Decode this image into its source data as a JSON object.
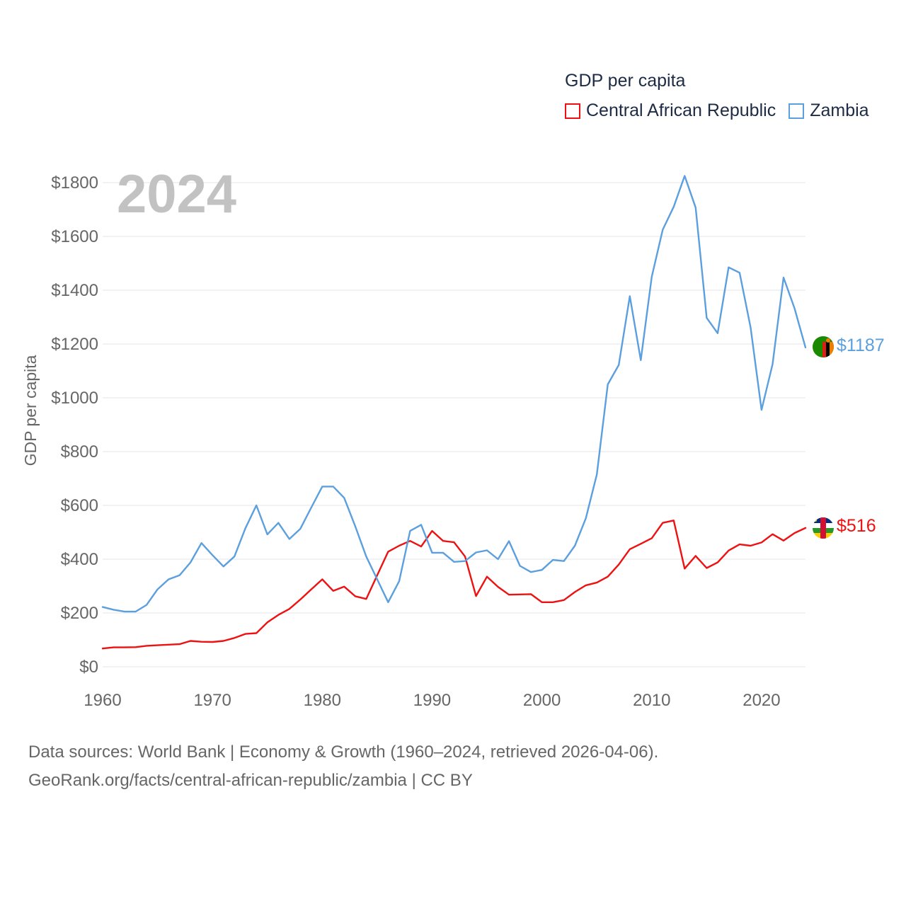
{
  "chart_data": {
    "type": "line",
    "title": "GDP per capita",
    "year_badge": "2024",
    "ylabel": "GDP per capita",
    "xlabel": "",
    "xlim": [
      1960,
      2024
    ],
    "ylim": [
      0,
      1800
    ],
    "x_ticks": [
      1960,
      1970,
      1980,
      1990,
      2000,
      2010,
      2020
    ],
    "y_ticks": [
      0,
      200,
      400,
      600,
      800,
      1000,
      1200,
      1400,
      1600,
      1800
    ],
    "y_tick_labels": [
      "$0",
      "$200",
      "$400",
      "$600",
      "$800",
      "$1000",
      "$1200",
      "$1400",
      "$1600",
      "$1800"
    ],
    "grid": true,
    "legend_position": "top-right",
    "series": [
      {
        "name": "Central African Republic",
        "color": "#ee1111",
        "end_label": "$516",
        "flag": "central-african-republic-flag-icon",
        "values": [
          68,
          72,
          72,
          73,
          78,
          80,
          82,
          84,
          96,
          93,
          92,
          96,
          107,
          122,
          125,
          165,
          193,
          215,
          250,
          288,
          325,
          282,
          298,
          262,
          252,
          340,
          428,
          450,
          468,
          447,
          505,
          468,
          463,
          410,
          263,
          335,
          297,
          268,
          269,
          270,
          240,
          240,
          248,
          278,
          303,
          313,
          335,
          380,
          437,
          457,
          478,
          535,
          544,
          365,
          412,
          367,
          388,
          432,
          455,
          450,
          462,
          493,
          469,
          497,
          516
        ]
      },
      {
        "name": "Zambia",
        "color": "#5b9fde",
        "end_label": "$1187",
        "flag": "zambia-flag-icon",
        "values": [
          222,
          212,
          205,
          205,
          230,
          288,
          325,
          340,
          388,
          460,
          415,
          373,
          410,
          515,
          600,
          492,
          535,
          475,
          513,
          592,
          670,
          670,
          628,
          522,
          410,
          325,
          240,
          318,
          505,
          528,
          424,
          424,
          390,
          393,
          425,
          433,
          400,
          467,
          375,
          352,
          360,
          397,
          393,
          450,
          552,
          715,
          1050,
          1122,
          1378,
          1140,
          1450,
          1625,
          1710,
          1825,
          1707,
          1297,
          1240,
          1485,
          1465,
          1262,
          955,
          1125,
          1447,
          1333,
          1187
        ]
      }
    ]
  },
  "sources": {
    "line1": "Data sources: World Bank | Economy & Growth (1960–2024, retrieved 2026-04-06).",
    "line2": "GeoRank.org/facts/central-african-republic/zambia | CC BY"
  }
}
